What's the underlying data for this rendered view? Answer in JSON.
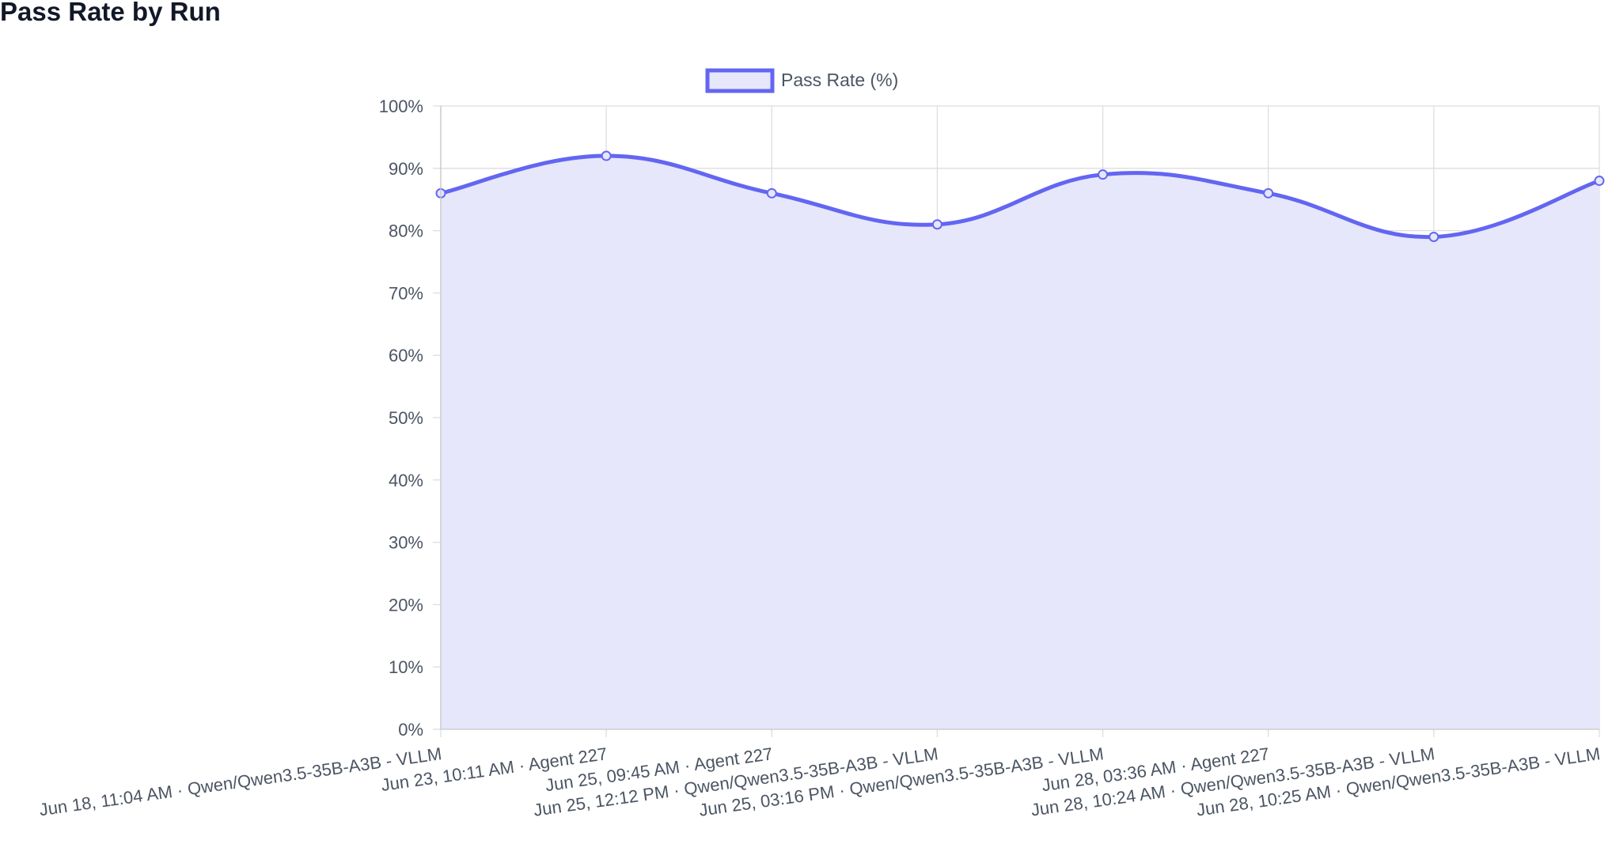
{
  "page": {
    "title": "Pass Rate by Run"
  },
  "chart_data": {
    "type": "line",
    "title": "",
    "xlabel": "",
    "ylabel": "",
    "ylim": [
      0,
      100
    ],
    "y_step": 10,
    "y_tick_suffix": "%",
    "grid": true,
    "smooth": true,
    "fill_area": true,
    "legend_position": "top-center",
    "colors": {
      "line": "#6366f1",
      "fill": "#e6e7fb",
      "grid": "#dedede",
      "tick_text": "#4b5563"
    },
    "categories": [
      "Jun 18, 11:04 AM · Qwen/Qwen3.5-35B-A3B - VLLM",
      "Jun 23, 10:11 AM ·    Agent 227",
      "Jun 25, 09:45 AM ·    Agent 227",
      "Jun 25, 12:12 PM · Qwen/Qwen3.5-35B-A3B - VLLM",
      "Jun 25, 03:16 PM · Qwen/Qwen3.5-35B-A3B - VLLM",
      "Jun 28, 03:36 AM ·    Agent 227",
      "Jun 28, 10:24 AM · Qwen/Qwen3.5-35B-A3B - VLLM",
      "Jun 28, 10:25 AM · Qwen/Qwen3.5-35B-A3B - VLLM"
    ],
    "series": [
      {
        "name": "Pass Rate (%)",
        "values": [
          86,
          92,
          86,
          81,
          89,
          86,
          79,
          88
        ]
      }
    ]
  }
}
